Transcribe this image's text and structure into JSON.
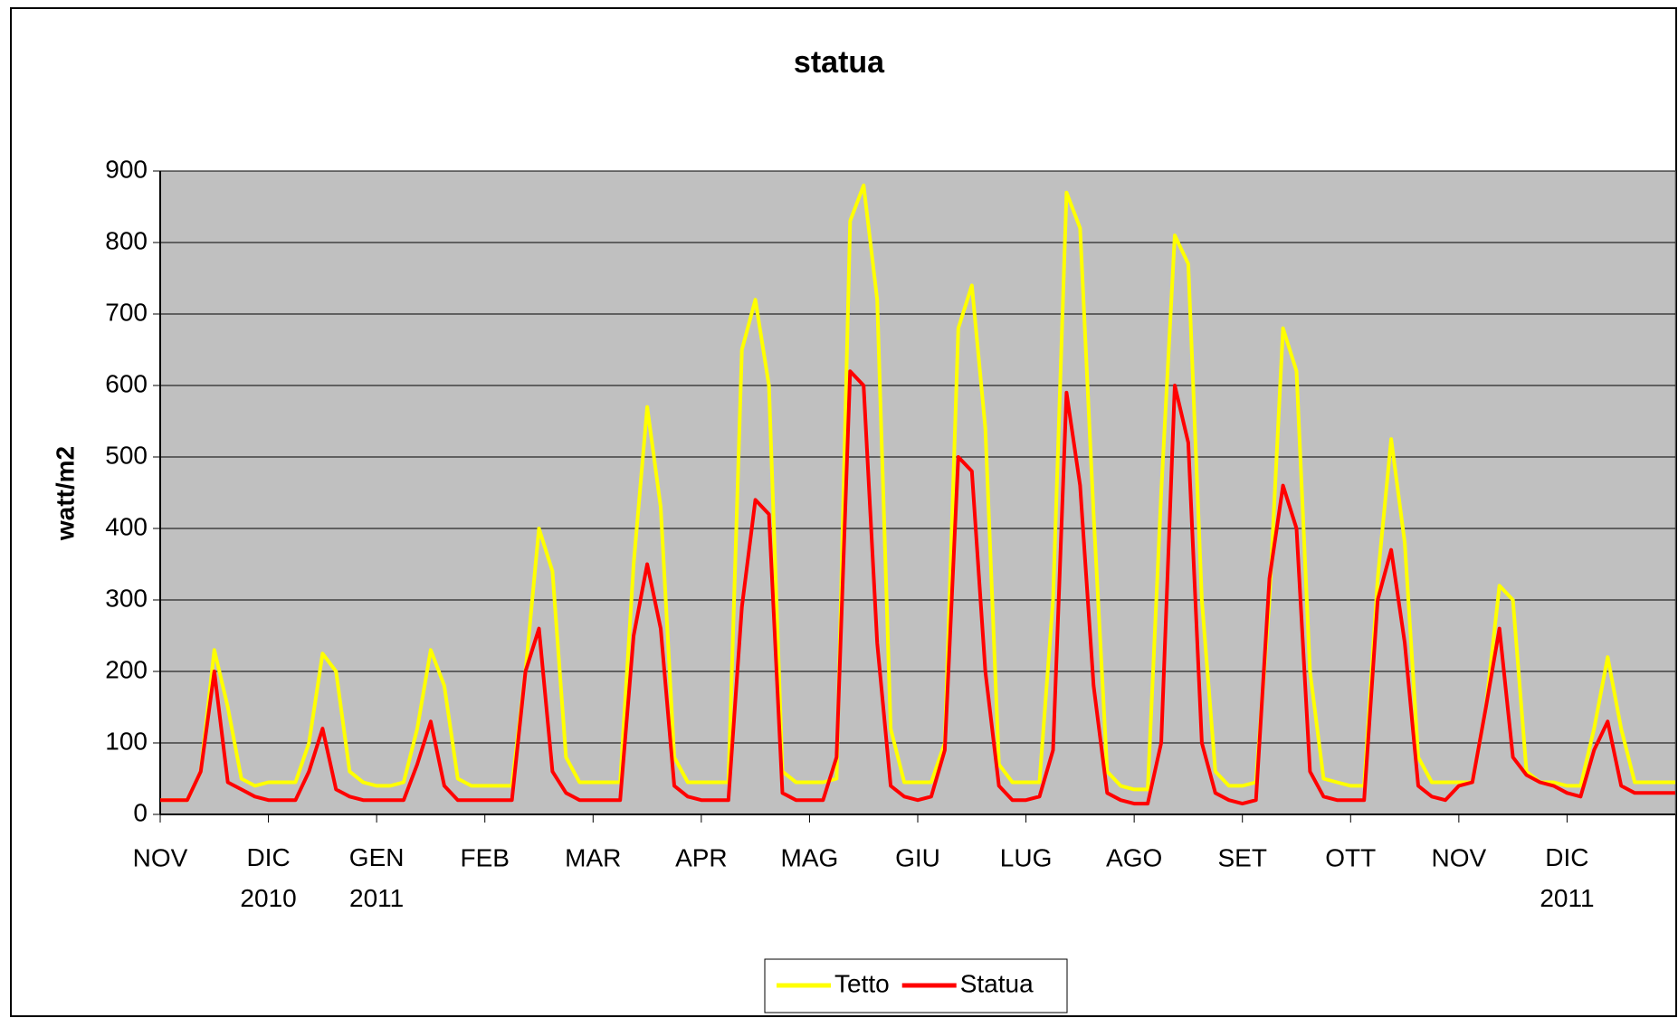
{
  "chart_data": {
    "type": "line",
    "title": "statua",
    "y_label": "watt/m2",
    "xlim": [
      0,
      14
    ],
    "ylim": [
      0,
      900
    ],
    "yticks": [
      0,
      100,
      200,
      300,
      400,
      500,
      600,
      700,
      800,
      900
    ],
    "grid": true,
    "legend": "bottom",
    "xticks": [
      {
        "value": 0,
        "label": "NOV"
      },
      {
        "value": 1,
        "label": "DIC\n2010"
      },
      {
        "value": 2,
        "label": "GEN\n2011"
      },
      {
        "value": 3,
        "label": "FEB"
      },
      {
        "value": 4,
        "label": "MAR"
      },
      {
        "value": 5,
        "label": "APR"
      },
      {
        "value": 6,
        "label": "MAG"
      },
      {
        "value": 7,
        "label": "GIU"
      },
      {
        "value": 8,
        "label": "LUG"
      },
      {
        "value": 9,
        "label": "AGO"
      },
      {
        "value": 10,
        "label": "SET"
      },
      {
        "value": 11,
        "label": "OTT"
      },
      {
        "value": 12,
        "label": "NOV"
      },
      {
        "value": 13,
        "label": "DIC\n2011"
      }
    ],
    "x": [
      0,
      0.125,
      0.25,
      0.375,
      0.5,
      0.625,
      0.75,
      0.875,
      1,
      1.125,
      1.25,
      1.375,
      1.5,
      1.625,
      1.75,
      1.875,
      2,
      2.125,
      2.25,
      2.375,
      2.5,
      2.625,
      2.75,
      2.875,
      3,
      3.125,
      3.25,
      3.375,
      3.5,
      3.625,
      3.75,
      3.875,
      4,
      4.125,
      4.25,
      4.375,
      4.5,
      4.625,
      4.75,
      4.875,
      5,
      5.125,
      5.25,
      5.375,
      5.5,
      5.625,
      5.75,
      5.875,
      6,
      6.125,
      6.25,
      6.375,
      6.5,
      6.625,
      6.75,
      6.875,
      7,
      7.125,
      7.25,
      7.375,
      7.5,
      7.625,
      7.75,
      7.875,
      8,
      8.125,
      8.25,
      8.375,
      8.5,
      8.625,
      8.75,
      8.875,
      9,
      9.125,
      9.25,
      9.375,
      9.5,
      9.625,
      9.75,
      9.875,
      10,
      10.125,
      10.25,
      10.375,
      10.5,
      10.625,
      10.75,
      10.875,
      11,
      11.125,
      11.25,
      11.375,
      11.5,
      11.625,
      11.75,
      11.875,
      12,
      12.125,
      12.25,
      12.375,
      12.5,
      12.625,
      12.75,
      12.875,
      13,
      13.125,
      13.25,
      13.375,
      13.5,
      13.625,
      13.75,
      13.875,
      14
    ],
    "series": [
      {
        "name": "Tetto",
        "color": "#ffff00",
        "values": [
          20,
          20,
          20,
          60,
          230,
          150,
          50,
          40,
          45,
          45,
          45,
          100,
          225,
          200,
          60,
          45,
          40,
          40,
          45,
          120,
          230,
          180,
          50,
          40,
          40,
          40,
          40,
          200,
          400,
          340,
          80,
          45,
          45,
          45,
          45,
          350,
          570,
          430,
          80,
          45,
          45,
          45,
          45,
          650,
          720,
          600,
          60,
          45,
          45,
          45,
          50,
          830,
          880,
          720,
          120,
          45,
          45,
          45,
          100,
          680,
          740,
          540,
          70,
          45,
          45,
          45,
          300,
          870,
          820,
          420,
          60,
          40,
          35,
          35,
          450,
          810,
          770,
          300,
          60,
          40,
          40,
          45,
          300,
          680,
          620,
          200,
          50,
          45,
          40,
          40,
          330,
          525,
          380,
          80,
          45,
          45,
          45,
          45,
          150,
          320,
          300,
          60,
          45,
          45,
          40,
          40,
          120,
          220,
          120,
          45,
          45,
          45,
          45
        ]
      },
      {
        "name": "Statua",
        "color": "#ff0000",
        "values": [
          20,
          20,
          20,
          60,
          200,
          45,
          35,
          25,
          20,
          20,
          20,
          60,
          120,
          35,
          25,
          20,
          20,
          20,
          20,
          70,
          130,
          40,
          20,
          20,
          20,
          20,
          20,
          200,
          260,
          60,
          30,
          20,
          20,
          20,
          20,
          250,
          350,
          260,
          40,
          25,
          20,
          20,
          20,
          290,
          440,
          420,
          30,
          20,
          20,
          20,
          80,
          620,
          600,
          240,
          40,
          25,
          20,
          25,
          90,
          500,
          480,
          200,
          40,
          20,
          20,
          25,
          90,
          590,
          460,
          180,
          30,
          20,
          15,
          15,
          100,
          600,
          520,
          100,
          30,
          20,
          15,
          20,
          330,
          460,
          400,
          60,
          25,
          20,
          20,
          20,
          300,
          370,
          240,
          40,
          25,
          20,
          40,
          45,
          150,
          260,
          80,
          55,
          45,
          40,
          30,
          25,
          90,
          130,
          40,
          30,
          30,
          30,
          30
        ]
      }
    ]
  }
}
